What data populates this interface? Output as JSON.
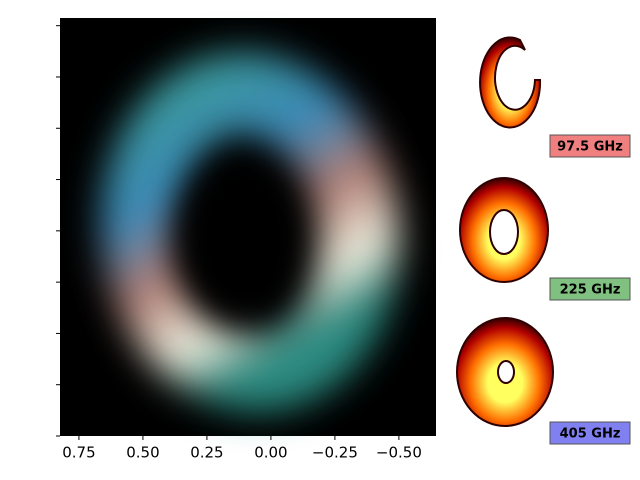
{
  "chart_data": {
    "type": "image",
    "xlim": [
      0.824,
      -0.645
    ],
    "xticks": [
      0.75,
      {
        "value": 0.5,
        "label": "0.50"
      },
      0.25,
      {
        "value": 0,
        "label": "0.00"
      },
      {
        "value": -0.25,
        "label": "−0.25"
      },
      {
        "value": -0.5,
        "label": "−0.50"
      }
    ],
    "ylim": [
      -0.8,
      0.83
    ],
    "yticks": [
      -0.8,
      -0.6,
      -0.4,
      -0.2,
      0,
      0.2,
      0.4,
      0.6,
      0.8
    ],
    "panels": [
      {
        "label": "97.5 GHz",
        "color": "#f08080"
      },
      {
        "label": "225 GHz",
        "color": "#80c080"
      },
      {
        "label": "405 GHz",
        "color": "#8080f0"
      }
    ]
  }
}
